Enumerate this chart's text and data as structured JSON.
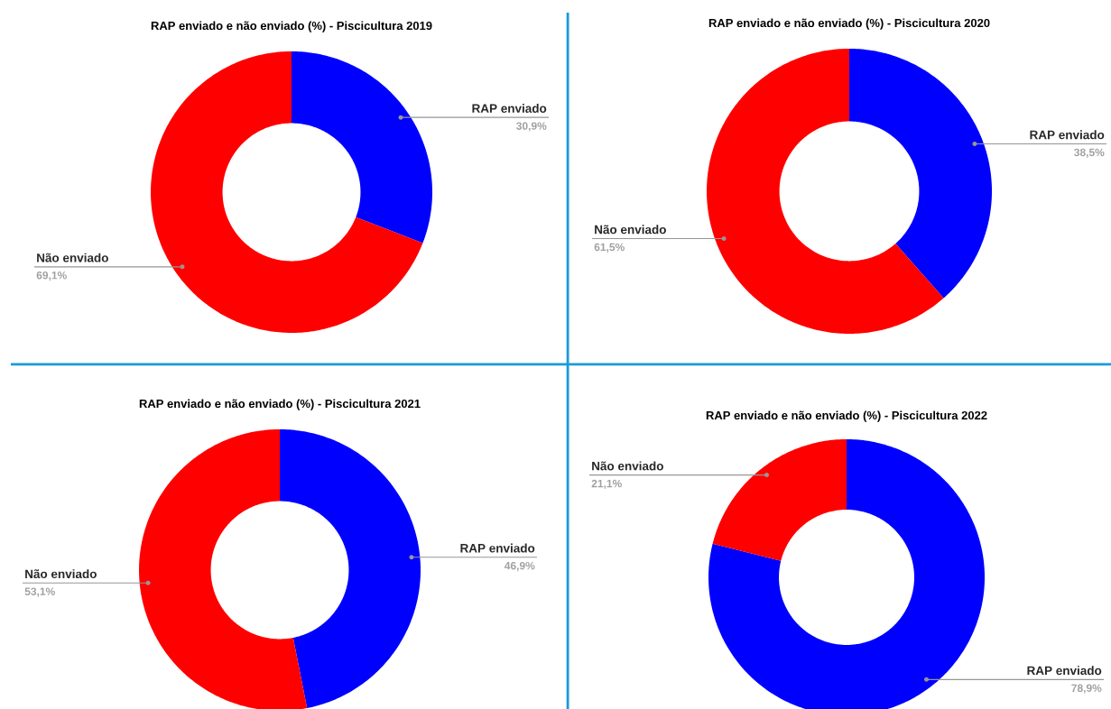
{
  "chart_data": [
    {
      "type": "donut",
      "title": "RAP enviado e não enviado (%) - Piscicultura 2019",
      "categories": [
        "RAP enviado",
        "Não enviado"
      ],
      "values": [
        30.9,
        69.1
      ],
      "value_labels": [
        "30,9%",
        "69,1%"
      ],
      "colors": [
        "#0000ff",
        "#ff0000"
      ]
    },
    {
      "type": "donut",
      "title": "RAP enviado e não enviado (%) - Piscicultura 2020",
      "categories": [
        "RAP enviado",
        "Não enviado"
      ],
      "values": [
        38.5,
        61.5
      ],
      "value_labels": [
        "38,5%",
        "61,5%"
      ],
      "colors": [
        "#0000ff",
        "#ff0000"
      ]
    },
    {
      "type": "donut",
      "title": "RAP enviado e não enviado (%) - Piscicultura 2021",
      "categories": [
        "RAP enviado",
        "Não enviado"
      ],
      "values": [
        46.9,
        53.1
      ],
      "value_labels": [
        "46,9%",
        "53,1%"
      ],
      "colors": [
        "#0000ff",
        "#ff0000"
      ]
    },
    {
      "type": "donut",
      "title": "RAP enviado e não enviado (%) - Piscicultura 2022",
      "categories": [
        "RAP enviado",
        "Não enviado"
      ],
      "values": [
        78.9,
        21.1
      ],
      "value_labels": [
        "78,9%",
        "21,1%"
      ],
      "colors": [
        "#0000ff",
        "#ff0000"
      ]
    }
  ]
}
